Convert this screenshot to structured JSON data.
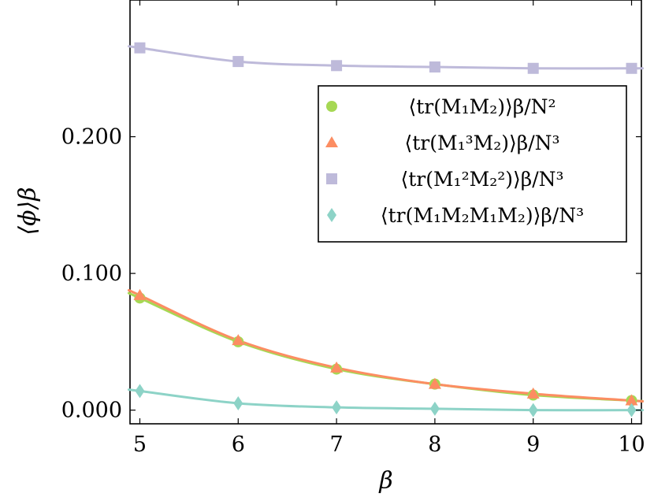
{
  "chart_data": {
    "type": "line",
    "xlabel": "β",
    "ylabel": "⟨ϕ⟩β",
    "xlim": [
      4.9,
      10.1
    ],
    "ylim": [
      -0.01,
      0.3
    ],
    "x_ticks": [
      "5",
      "6",
      "7",
      "8",
      "9",
      "10"
    ],
    "y_ticks": [
      "0.000",
      "0.100",
      "0.200"
    ],
    "grid": false,
    "legend_position": "top-right",
    "x": [
      5,
      6,
      7,
      8,
      9,
      10
    ],
    "series": [
      {
        "name": "⟨tr(M1M2)⟩β/N2",
        "legend_label": "⟨tr(M₁M₂)⟩β/N²",
        "marker": "circle",
        "color": "#a6d854",
        "values": [
          0.082,
          0.05,
          0.03,
          0.019,
          0.011,
          0.007
        ]
      },
      {
        "name": "⟨tr(M13M2)⟩β/N3",
        "legend_label": "⟨tr(M₁³M₂)⟩β/N³",
        "marker": "triangle",
        "color": "#fc8d62",
        "values": [
          0.084,
          0.051,
          0.031,
          0.019,
          0.012,
          0.007
        ]
      },
      {
        "name": "⟨tr(M12M22)⟩β/N3",
        "legend_label": "⟨tr(M₁²M₂²)⟩β/N³",
        "marker": "square",
        "color": "#bebada",
        "values": [
          0.265,
          0.255,
          0.252,
          0.251,
          0.25,
          0.25
        ]
      },
      {
        "name": "⟨tr(M1M2M1M2)⟩β/N3",
        "legend_label": "⟨tr(M₁M₂M₁M₂)⟩β/N³",
        "marker": "diamond",
        "color": "#8dd3c7",
        "values": [
          0.014,
          0.005,
          0.002,
          0.001,
          0.0,
          0.0
        ]
      }
    ]
  }
}
